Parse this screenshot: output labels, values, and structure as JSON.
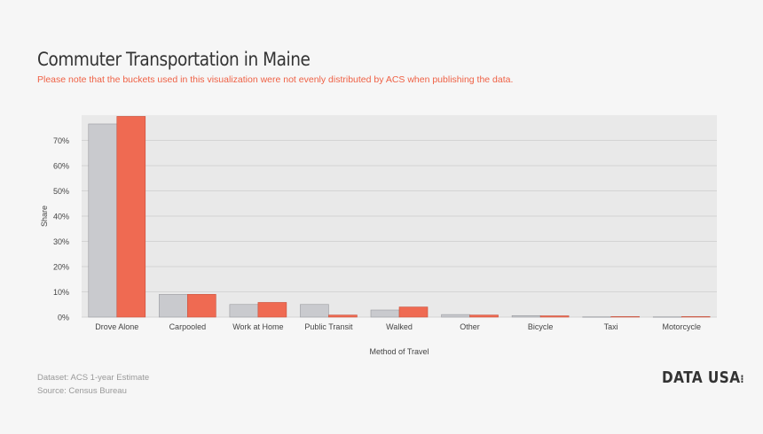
{
  "header": {
    "title": "Commuter Transportation in Maine",
    "subtitle": "Please note that the buckets used in this visualization were not evenly distributed by ACS when publishing the data."
  },
  "footer": {
    "dataset": "Dataset: ACS 1-year Estimate",
    "source": "Source: Census Bureau",
    "logo": "DATA USA"
  },
  "chart_data": {
    "type": "bar",
    "categories": [
      "Drove Alone",
      "Carpooled",
      "Work at Home",
      "Public Transit",
      "Walked",
      "Other",
      "Bicycle",
      "Taxi",
      "Motorcycle"
    ],
    "series": [
      {
        "values": [
          76.5,
          9.0,
          5.0,
          5.0,
          2.8,
          1.0,
          0.6,
          0.1,
          0.1
        ],
        "color": "#c9cace"
      },
      {
        "values": [
          79.5,
          9.0,
          5.8,
          0.8,
          4.0,
          0.8,
          0.5,
          0.2,
          0.2
        ],
        "color": "#ef6a52"
      }
    ],
    "xlabel": "Method of Travel",
    "ylabel": "Share",
    "ylim": [
      0,
      80
    ],
    "yticks": [
      0,
      10,
      20,
      30,
      40,
      50,
      60,
      70
    ],
    "ytick_labels": [
      "0%",
      "10%",
      "20%",
      "30%",
      "40%",
      "50%",
      "60%",
      "70%"
    ],
    "grid": true,
    "plot_background": "#e9e9e9"
  }
}
